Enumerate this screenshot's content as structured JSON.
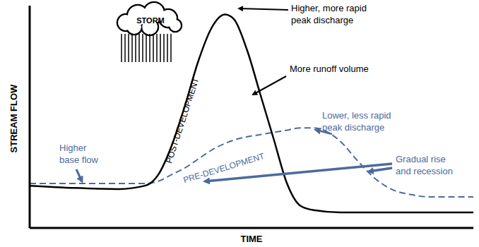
{
  "chart_data": {
    "type": "line",
    "x_label": "TIME",
    "y_label": "STREAM FLOW",
    "xlim": [
      0,
      100
    ],
    "ylim": [
      0,
      100
    ],
    "tick_labels": false,
    "grid": false,
    "x": [
      0,
      10,
      20,
      26,
      29,
      32,
      35,
      38,
      41,
      44,
      46,
      49,
      52,
      55,
      58,
      61,
      64,
      70,
      74,
      78,
      82,
      86,
      90,
      100
    ],
    "series": [
      {
        "name": "POST-DEVELOPMENT",
        "color": "#000000",
        "line_style": "solid",
        "values": [
          19,
          18,
          17.5,
          19,
          24,
          37,
          55,
          75,
          90,
          96,
          94,
          80,
          60,
          40,
          20,
          10,
          8,
          7,
          7,
          7,
          7,
          7,
          7,
          7
        ]
      },
      {
        "name": "PRE-DEVELOPMENT",
        "color": "#4d6a9c",
        "line_style": "dashed",
        "values": [
          20,
          20,
          20,
          20,
          21,
          24,
          27,
          31,
          35,
          38,
          39.5,
          41,
          42,
          43,
          44,
          45,
          45,
          39,
          30,
          22,
          17,
          15,
          14,
          14
        ]
      }
    ],
    "annotations": [
      {
        "text": [
          "STORM"
        ]
      },
      {
        "text": [
          "Higher, more rapid",
          "peak discharge"
        ]
      },
      {
        "text": [
          "More runoff volume"
        ]
      },
      {
        "text": [
          "Lower, less rapid",
          "peak discharge"
        ]
      },
      {
        "text": [
          "Gradual rise",
          "and recession"
        ]
      },
      {
        "text": [
          "Higher",
          "base flow"
        ]
      }
    ]
  }
}
